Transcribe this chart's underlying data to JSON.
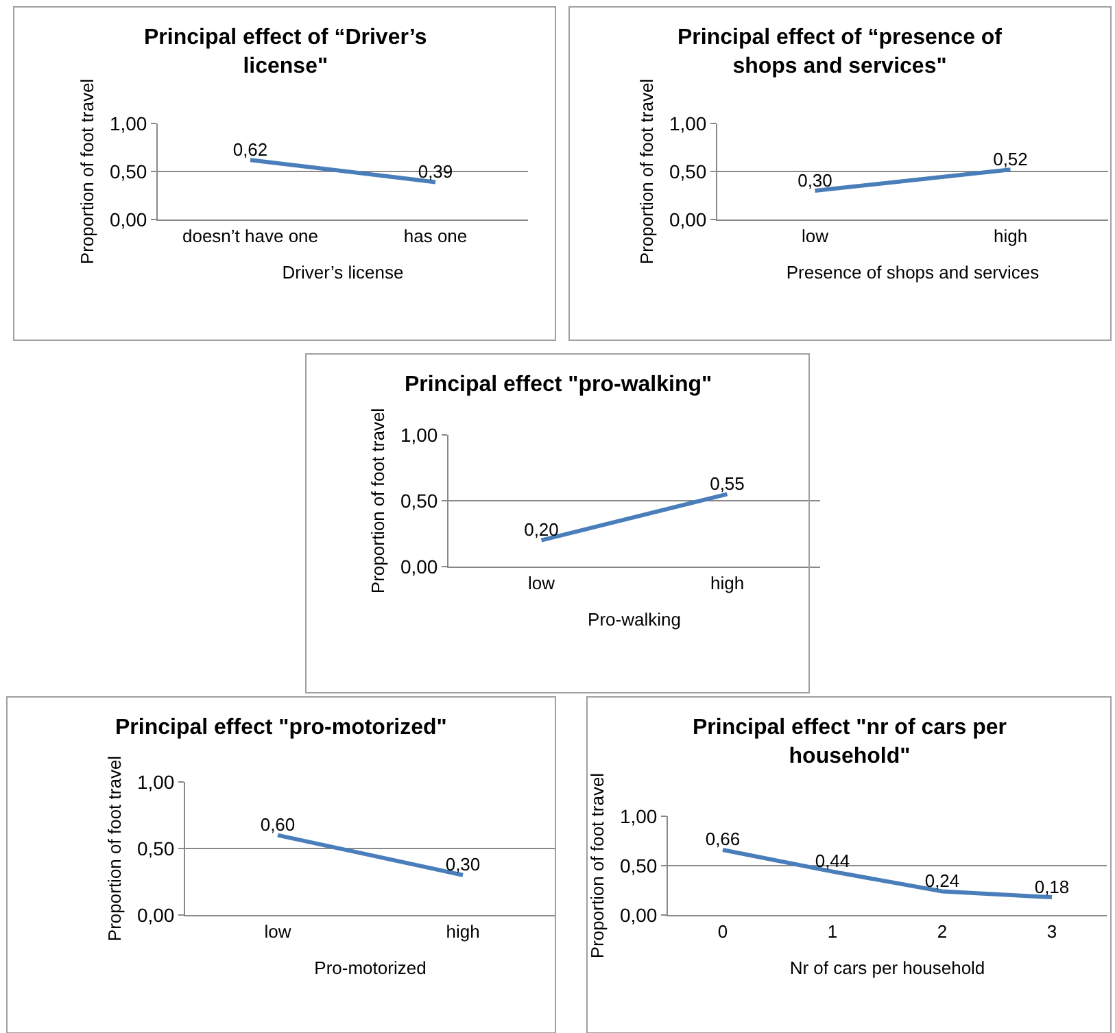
{
  "chart_data": [
    {
      "type": "line",
      "title": "Principal effect of “Driver’s license\"",
      "xlabel": "Driver’s license",
      "ylabel": "Proportion of foot travel",
      "categories": [
        "doesn’t have one",
        "has one"
      ],
      "series": [
        {
          "color": "#4a7ebb",
          "values": [
            0.62,
            0.39
          ],
          "value_labels": [
            "0,62",
            "0,39"
          ]
        }
      ],
      "ylim": [
        0,
        1
      ],
      "yticks": [
        {
          "value": 0,
          "label": "0,00"
        },
        {
          "value": 0.5,
          "label": "0,50"
        },
        {
          "value": 1,
          "label": "1,00"
        }
      ],
      "grid": "y",
      "marker": "none",
      "line_style": "solid"
    },
    {
      "type": "line",
      "title": "Principal effect of “presence of shops and services\"",
      "xlabel": "Presence of shops and services",
      "ylabel": "Proportion of foot travel",
      "categories": [
        "low",
        "high"
      ],
      "series": [
        {
          "color": "#4a7ebb",
          "values": [
            0.3,
            0.52
          ],
          "value_labels": [
            "0,30",
            "0,52"
          ]
        }
      ],
      "ylim": [
        0,
        1
      ],
      "yticks": [
        {
          "value": 0,
          "label": "0,00"
        },
        {
          "value": 0.5,
          "label": "0,50"
        },
        {
          "value": 1,
          "label": "1,00"
        }
      ],
      "grid": "y",
      "marker": "none",
      "line_style": "solid"
    },
    {
      "type": "line",
      "title": "Principal effect \"pro-walking\"",
      "xlabel": "Pro-walking",
      "ylabel": "Proportion of foot travel",
      "categories": [
        "low",
        "high"
      ],
      "series": [
        {
          "color": "#4a7ebb",
          "values": [
            0.2,
            0.55
          ],
          "value_labels": [
            "0,20",
            "0,55"
          ]
        }
      ],
      "ylim": [
        0,
        1
      ],
      "yticks": [
        {
          "value": 0,
          "label": "0,00"
        },
        {
          "value": 0.5,
          "label": "0,50"
        },
        {
          "value": 1,
          "label": "1,00"
        }
      ],
      "grid": "y",
      "marker": "none",
      "line_style": "solid"
    },
    {
      "type": "line",
      "title": "Principal effect \"pro-motorized\"",
      "xlabel": "Pro-motorized",
      "ylabel": "Proportion of foot travel",
      "categories": [
        "low",
        "high"
      ],
      "series": [
        {
          "color": "#4a7ebb",
          "values": [
            0.6,
            0.3
          ],
          "value_labels": [
            "0,60",
            "0,30"
          ]
        }
      ],
      "ylim": [
        0,
        1
      ],
      "yticks": [
        {
          "value": 0,
          "label": "0,00"
        },
        {
          "value": 0.5,
          "label": "0,50"
        },
        {
          "value": 1,
          "label": "1,00"
        }
      ],
      "grid": "y",
      "marker": "none",
      "line_style": "solid"
    },
    {
      "type": "line",
      "title": "Principal effect \"nr of cars per household\"",
      "xlabel": "Nr of cars per household",
      "ylabel": "Proportion of foot travel",
      "categories": [
        "0",
        "1",
        "2",
        "3"
      ],
      "series": [
        {
          "color": "#4a7ebb",
          "values": [
            0.66,
            0.44,
            0.24,
            0.18
          ],
          "value_labels": [
            "0,66",
            "0,44",
            "0,24",
            "0,18"
          ]
        }
      ],
      "ylim": [
        0,
        1
      ],
      "yticks": [
        {
          "value": 0,
          "label": "0,00"
        },
        {
          "value": 0.5,
          "label": "0,50"
        },
        {
          "value": 1,
          "label": "1,00"
        }
      ],
      "grid": "y",
      "marker": "none",
      "line_style": "solid"
    }
  ]
}
